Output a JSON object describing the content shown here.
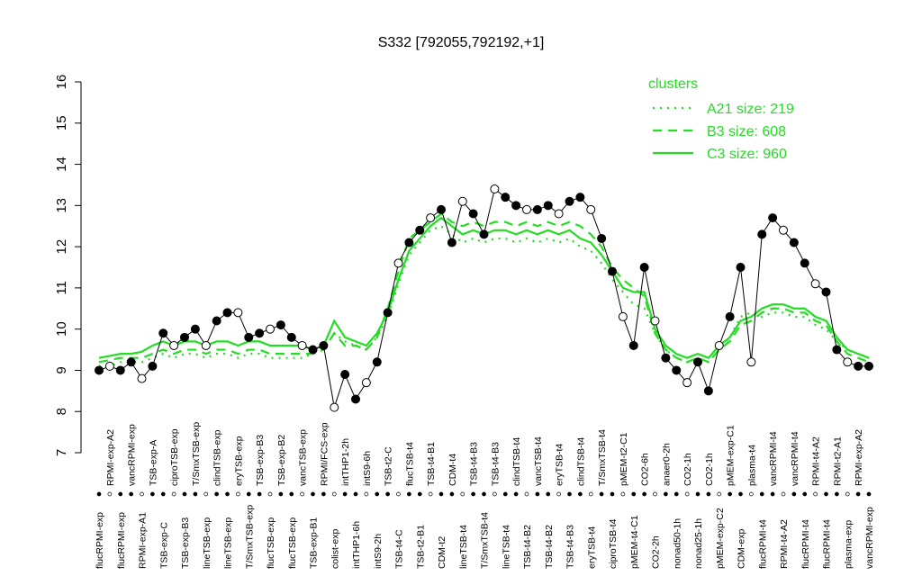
{
  "chart_data": {
    "type": "line",
    "title": "S332 [792055,792192,+1]",
    "categories": [
      "flucRPMI-exp",
      "RPMI-exp-A2",
      "flucRPMI-exp",
      "vancRPMI-exp",
      "RPMI-exp-A1",
      "TSB-exp-A",
      "TSB-exp-C",
      "ciproTSB-exp",
      "TSB-exp-B3",
      "T/SmxTSB-exp",
      "lineTSB-exp",
      "clindTSB-exp",
      "lineTSB-exp",
      "eryTSB-exp",
      "T/SmxTSB-exp",
      "TSB-exp-B3",
      "flucTSB-exp",
      "TSB-exp-B2",
      "flucTSB-exp",
      "vancTSB-exp",
      "TSB-exp-B1",
      "RPMI/FCS-exp",
      "colist-exp",
      "intTHP1-2h",
      "intTHP1-6h",
      "intS9-6h",
      "intS9-2h",
      "TSB-t2-C",
      "TSB-t4-C",
      "flucTSB-t4",
      "TSB-t2-B1",
      "TSB-t4-B1",
      "CDM-t2",
      "CDM-t4",
      "lineTSB-t4",
      "TSB-t4-B3",
      "T/SmxTSB-t4",
      "TSB-t4-B3",
      "lineTSB-t4",
      "clindTSB-t4",
      "TSB-t4-B2",
      "vancTSB-t4",
      "TSB-t4-B2",
      "eryTSB-t4",
      "TSB-t4-B3",
      "clindTSB-t4",
      "eryTSB-t4",
      "T/SmxTSB-t4",
      "ciproTSB-t4",
      "pMEM-t2-C1",
      "pMEM-t4-C1",
      "CO2-6h",
      "CO2-2h",
      "anaer0-2h",
      "nonad50-1h",
      "CO2-1h",
      "nonad25-1h",
      "CO2-1h",
      "pMEM-exp-C2",
      "pMEM-exp-C1",
      "CDM-exp",
      "plasma-t4",
      "flucRPMI-t4",
      "vancRPMI-t4",
      "RPMI-t4-A2",
      "vancRPMI-t4",
      "flucRPMI-t4",
      "RPMI-t4-A2",
      "flucRPMI-t4",
      "RPMI-t2-A1",
      "plasma-exp",
      "RPMI-exp-A2",
      "vancRPMI-exp"
    ],
    "values": [
      9.0,
      9.1,
      9.0,
      9.2,
      8.8,
      9.1,
      9.9,
      9.6,
      9.8,
      10.0,
      9.6,
      10.2,
      10.4,
      10.4,
      9.8,
      9.9,
      10.0,
      10.1,
      9.8,
      9.6,
      9.5,
      9.6,
      8.1,
      8.9,
      8.3,
      8.7,
      9.2,
      10.4,
      11.6,
      12.1,
      12.4,
      12.7,
      12.9,
      12.1,
      13.1,
      12.8,
      12.3,
      13.4,
      13.2,
      13.0,
      12.9,
      12.9,
      13.0,
      12.8,
      13.1,
      13.2,
      12.9,
      12.2,
      11.4,
      10.3,
      9.6,
      11.5,
      10.2,
      9.3,
      9.0,
      8.7,
      9.2,
      8.5,
      9.6,
      10.3,
      11.5,
      9.2,
      12.3,
      12.7,
      12.4,
      12.1,
      11.6,
      11.1,
      10.9,
      9.5,
      9.2,
      9.1,
      9.1
    ],
    "legend_title": "clusters",
    "series": [
      {
        "name": "A21 size: 219",
        "color": "#22dd22",
        "style": "dotted",
        "values": [
          9.1,
          9.1,
          9.2,
          9.2,
          9.2,
          9.3,
          9.4,
          9.3,
          9.4,
          9.4,
          9.3,
          9.4,
          9.4,
          9.3,
          9.4,
          9.4,
          9.3,
          9.3,
          9.3,
          9.3,
          9.4,
          9.5,
          9.9,
          9.7,
          9.6,
          9.5,
          9.8,
          10.3,
          11.1,
          11.8,
          12.1,
          12.4,
          12.5,
          12.3,
          12.1,
          12.2,
          12.1,
          12.2,
          12.2,
          12.1,
          12.2,
          12.1,
          12.2,
          12.1,
          12.2,
          12.0,
          11.9,
          11.6,
          11.2,
          10.9,
          10.6,
          10.5,
          9.9,
          9.5,
          9.3,
          9.2,
          9.3,
          9.2,
          9.5,
          9.8,
          10.3,
          10.4,
          10.3,
          10.4,
          10.4,
          10.3,
          10.3,
          10.1,
          10.0,
          9.7,
          9.5,
          9.4,
          9.3
        ]
      },
      {
        "name": "B3 size: 608",
        "color": "#22dd22",
        "style": "dashed",
        "values": [
          9.2,
          9.25,
          9.3,
          9.3,
          9.3,
          9.4,
          9.5,
          9.4,
          9.5,
          9.5,
          9.4,
          9.5,
          9.5,
          9.4,
          9.5,
          9.5,
          9.4,
          9.4,
          9.4,
          9.4,
          9.4,
          9.5,
          9.9,
          9.6,
          9.6,
          9.5,
          9.8,
          10.5,
          11.4,
          12.2,
          12.4,
          12.6,
          12.8,
          12.6,
          12.5,
          12.6,
          12.5,
          12.6,
          12.6,
          12.5,
          12.6,
          12.5,
          12.6,
          12.5,
          12.6,
          12.5,
          12.3,
          12.0,
          11.5,
          11.2,
          11.0,
          10.8,
          9.9,
          9.5,
          9.3,
          9.2,
          9.3,
          9.2,
          9.5,
          9.7,
          10.1,
          10.2,
          10.4,
          10.5,
          10.5,
          10.4,
          10.4,
          10.2,
          10.1,
          9.7,
          9.4,
          9.3,
          9.2
        ]
      },
      {
        "name": "C3 size: 960",
        "color": "#22dd22",
        "style": "solid",
        "values": [
          9.3,
          9.35,
          9.4,
          9.4,
          9.45,
          9.6,
          9.7,
          9.6,
          9.7,
          9.7,
          9.6,
          9.7,
          9.7,
          9.6,
          9.7,
          9.7,
          9.6,
          9.6,
          9.6,
          9.6,
          9.5,
          9.6,
          10.2,
          9.8,
          9.7,
          9.6,
          9.9,
          10.4,
          11.2,
          11.9,
          12.2,
          12.5,
          12.7,
          12.5,
          12.3,
          12.4,
          12.3,
          12.4,
          12.4,
          12.3,
          12.4,
          12.3,
          12.4,
          12.3,
          12.4,
          12.2,
          12.1,
          11.8,
          11.4,
          11.0,
          10.9,
          10.9,
          10.0,
          9.6,
          9.4,
          9.3,
          9.4,
          9.3,
          9.6,
          9.8,
          10.2,
          10.3,
          10.5,
          10.6,
          10.6,
          10.5,
          10.5,
          10.3,
          10.2,
          9.8,
          9.5,
          9.4,
          9.3
        ]
      }
    ],
    "ylim": [
      7,
      16
    ],
    "yticks": [
      7,
      8,
      9,
      10,
      11,
      12,
      13,
      14,
      15,
      16
    ]
  }
}
